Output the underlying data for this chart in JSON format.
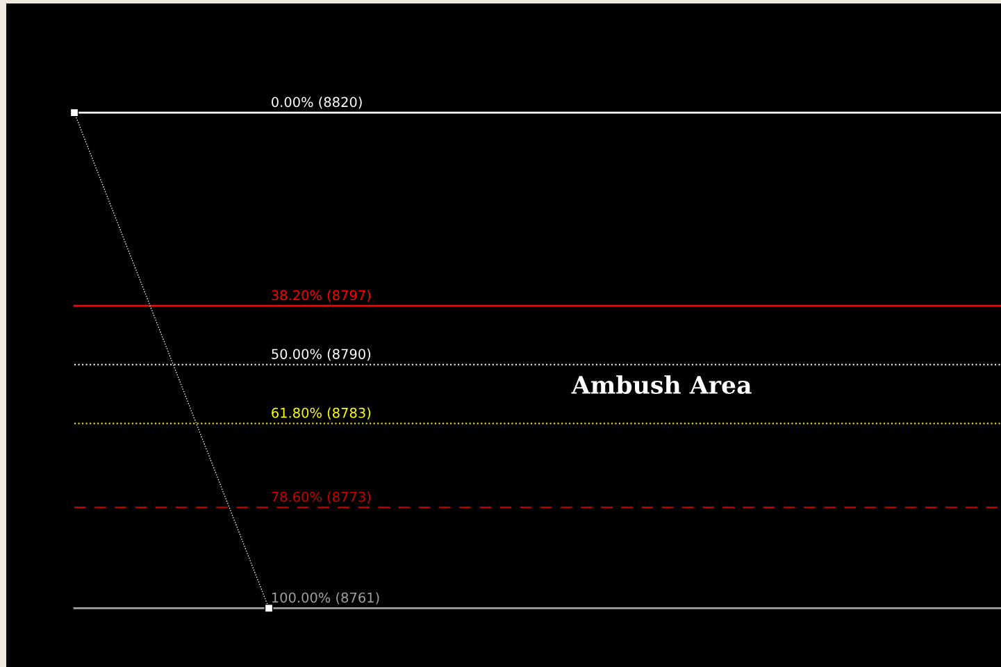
{
  "chart_data": {
    "type": "line",
    "categories": [
      null,
      null
    ],
    "series": [
      {
        "color": "#ffffff",
        "values": [
          8820,
          8761
        ]
      }
    ],
    "marker": "square",
    "line_style": "dotted",
    "grid": false,
    "tick_labels": false,
    "ylim": [
      8754,
      8833
    ],
    "ref_lines": [
      {
        "axis": "y",
        "value": 8820,
        "label": "0.00% (8820)",
        "color": "#ffffff",
        "line_style": "solid"
      },
      {
        "axis": "y",
        "value": 8797,
        "label": "38.20% (8797)",
        "color": "#ff0000",
        "line_style": "solid"
      },
      {
        "axis": "y",
        "value": 8790,
        "label": "50.00% (8790)",
        "color": "#ffffff",
        "line_style": "dotted"
      },
      {
        "axis": "y",
        "value": 8783,
        "label": "61.80% (8783)",
        "color": "#ffff00",
        "line_style": "dotted"
      },
      {
        "axis": "y",
        "value": 8773,
        "label": "78.60% (8773)",
        "color": "#cc0000",
        "line_style": "dashed"
      },
      {
        "axis": "y",
        "value": 8761,
        "label": "100.00% (8761)",
        "color": "#a0a0a0",
        "line_style": "solid"
      }
    ],
    "annotations": [
      "Ambush Area"
    ]
  }
}
